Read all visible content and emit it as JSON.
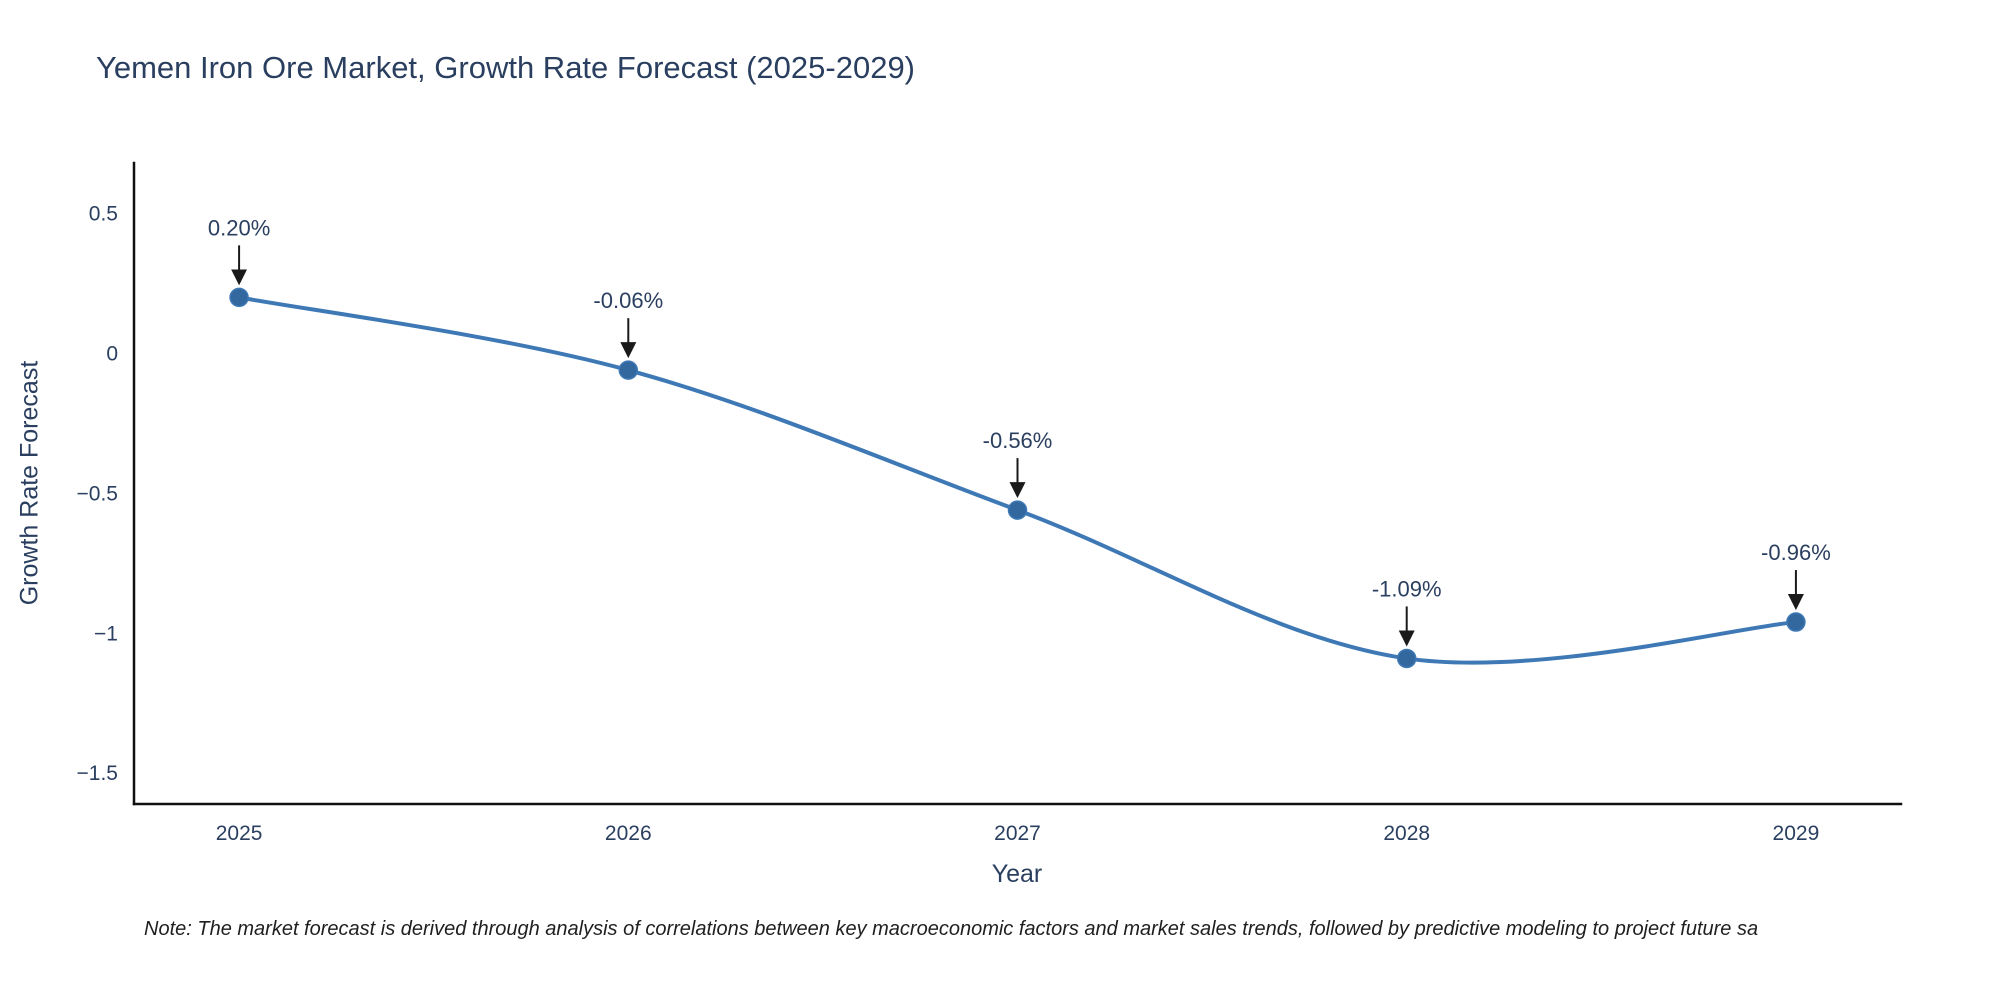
{
  "chart_data": {
    "type": "line",
    "title": "Yemen Iron Ore Market, Growth Rate Forecast (2025-2029)",
    "xlabel": "Year",
    "ylabel": "Growth Rate Forecast",
    "x": [
      2025,
      2026,
      2027,
      2028,
      2029
    ],
    "y": [
      0.2,
      -0.06,
      -0.56,
      -1.09,
      -0.96
    ],
    "point_labels": [
      "0.20%",
      "-0.06%",
      "-0.56%",
      "-1.09%",
      "-0.96%"
    ],
    "xtick_labels": [
      "2025",
      "2026",
      "2027",
      "2028",
      "2029"
    ],
    "yticks": [
      0.5,
      0,
      -0.5,
      -1,
      -1.5
    ],
    "ytick_labels": [
      "0.5",
      "0",
      "−0.5",
      "−1",
      "−1.5"
    ],
    "xlim": [
      2024.73,
      2029.27
    ],
    "ylim": [
      -1.61,
      0.68
    ],
    "line_shape": "spline",
    "line_color": "#3e79b6",
    "marker_color": "#33689e",
    "grid": false,
    "legend": false
  },
  "note": {
    "text": "Note: The market forecast is derived through analysis of correlations between key macroeconomic factors and market sales trends, followed by predictive modeling to project future sa"
  }
}
